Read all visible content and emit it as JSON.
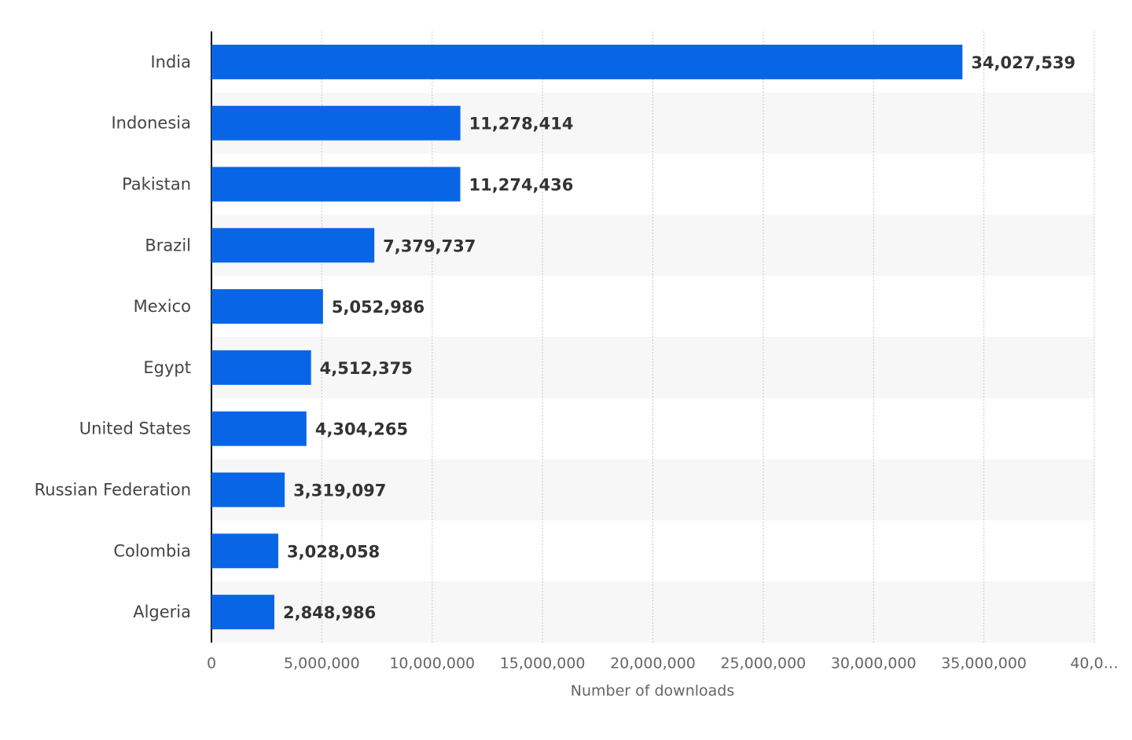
{
  "chart_data": {
    "type": "bar",
    "x_axis_label": "Number of downloads",
    "categories": [
      "India",
      "Indonesia",
      "Pakistan",
      "Brazil",
      "Mexico",
      "Egypt",
      "United States",
      "Russian Federation",
      "Colombia",
      "Algeria"
    ],
    "values": [
      34027539,
      11278414,
      11274436,
      7379737,
      5052986,
      4512375,
      4304265,
      3319097,
      3028058,
      2848986
    ],
    "value_labels": [
      "34,027,539",
      "11,278,414",
      "11,274,436",
      "7,379,737",
      "5,052,986",
      "4,512,375",
      "4,304,265",
      "3,319,097",
      "3,028,058",
      "2,848,986"
    ],
    "color": "#0866e6",
    "xlim": [
      0,
      40000000
    ],
    "xticks": [
      0,
      {
        "value": 5000000,
        "label": "5,000,000"
      },
      {
        "value": 10000000,
        "label": "10,000,000"
      },
      {
        "value": 15000000,
        "label": "15,000,000"
      },
      {
        "value": 20000000,
        "label": "20,000,000"
      },
      {
        "value": 25000000,
        "label": "25,000,000"
      },
      {
        "value": 30000000,
        "label": "30,000,000"
      },
      {
        "value": 35000000,
        "label": "35,000,000"
      },
      {
        "value": 40000000,
        "label": "40,0…"
      }
    ],
    "grid": true
  }
}
